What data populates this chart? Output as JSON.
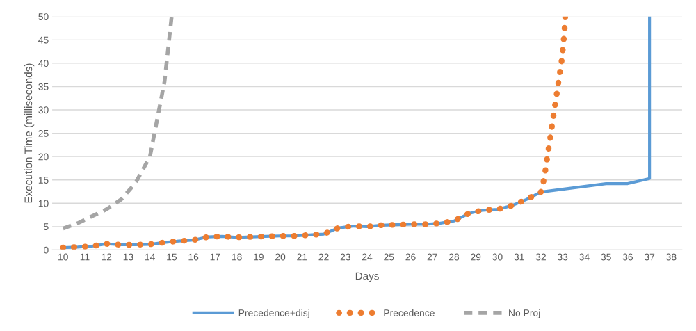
{
  "chart_data": {
    "type": "line",
    "xlabel": "Days",
    "ylabel": "Execution Time (milliseconds)",
    "xlim": [
      9.5,
      38.5
    ],
    "xticks": [
      10,
      11,
      12,
      13,
      14,
      15,
      16,
      17,
      18,
      19,
      20,
      21,
      22,
      23,
      24,
      25,
      26,
      27,
      28,
      29,
      30,
      31,
      32,
      33,
      34,
      35,
      36,
      37,
      38
    ],
    "ylim": [
      0,
      50
    ],
    "yticks": [
      0,
      5,
      10,
      15,
      20,
      25,
      30,
      35,
      40,
      45,
      50
    ],
    "grid": "y",
    "legend": "bottom",
    "marker": "none",
    "series": [
      {
        "name": "Precedence+disj",
        "color": "#5b9bd5",
        "line_style": "solid",
        "x": [
          10,
          10.67,
          11.33,
          12,
          12.67,
          13.33,
          14,
          14.67,
          15.33,
          16,
          16.67,
          17.33,
          18,
          18.67,
          19.33,
          20,
          20.67,
          21.33,
          22,
          22.67,
          23.33,
          24,
          24.67,
          25.33,
          26,
          26.67,
          27.33,
          28,
          28.67,
          29.33,
          30,
          30.67,
          31.33,
          32,
          33,
          34,
          35,
          36,
          37,
          37
        ],
        "values": [
          0.5,
          0.6,
          0.8,
          1.3,
          1.1,
          1.1,
          1.2,
          1.6,
          1.9,
          2.1,
          2.8,
          2.9,
          2.7,
          2.8,
          2.9,
          3.0,
          3.0,
          3.2,
          3.4,
          4.7,
          5.1,
          5.0,
          5.3,
          5.4,
          5.5,
          5.5,
          5.7,
          6.2,
          7.8,
          8.5,
          8.7,
          9.5,
          10.8,
          12.4,
          13.0,
          13.6,
          14.2,
          14.2,
          15.3,
          50
        ]
      },
      {
        "name": "Precedence",
        "color": "#ed7d31",
        "line_style": "dotted",
        "x": [
          10,
          10.67,
          11.33,
          12,
          12.67,
          13.33,
          14,
          14.67,
          15.33,
          16,
          16.67,
          17.33,
          18,
          18.67,
          19.33,
          20,
          20.67,
          21.33,
          22,
          22.67,
          23.33,
          24,
          24.67,
          25.33,
          26,
          26.67,
          27.33,
          28,
          28.67,
          29.33,
          30,
          30.67,
          31.33,
          32,
          32.15,
          32.25,
          32.35,
          32.45,
          32.55,
          32.65,
          32.75,
          32.85,
          32.95,
          33.02,
          33.08,
          33.12
        ],
        "values": [
          0.5,
          0.6,
          0.8,
          1.3,
          1.1,
          1.1,
          1.2,
          1.6,
          1.9,
          2.1,
          2.8,
          2.9,
          2.7,
          2.8,
          2.9,
          3.0,
          3.0,
          3.2,
          3.4,
          4.7,
          5.1,
          5.0,
          5.3,
          5.4,
          5.5,
          5.5,
          5.7,
          6.2,
          7.8,
          8.5,
          8.7,
          9.5,
          10.8,
          12.4,
          15.3,
          18.4,
          21.6,
          24.7,
          27.8,
          31.0,
          34.1,
          37.3,
          40.4,
          43.5,
          46.6,
          49.9
        ]
      },
      {
        "name": "No Proj",
        "color": "#a5a5a5",
        "line_style": "dashed",
        "x": [
          10,
          10.67,
          11.33,
          12,
          12.67,
          13.33,
          14,
          14.67,
          15
        ],
        "values": [
          4.6,
          5.7,
          7.2,
          8.7,
          10.8,
          14.3,
          20,
          36,
          50
        ]
      }
    ]
  }
}
